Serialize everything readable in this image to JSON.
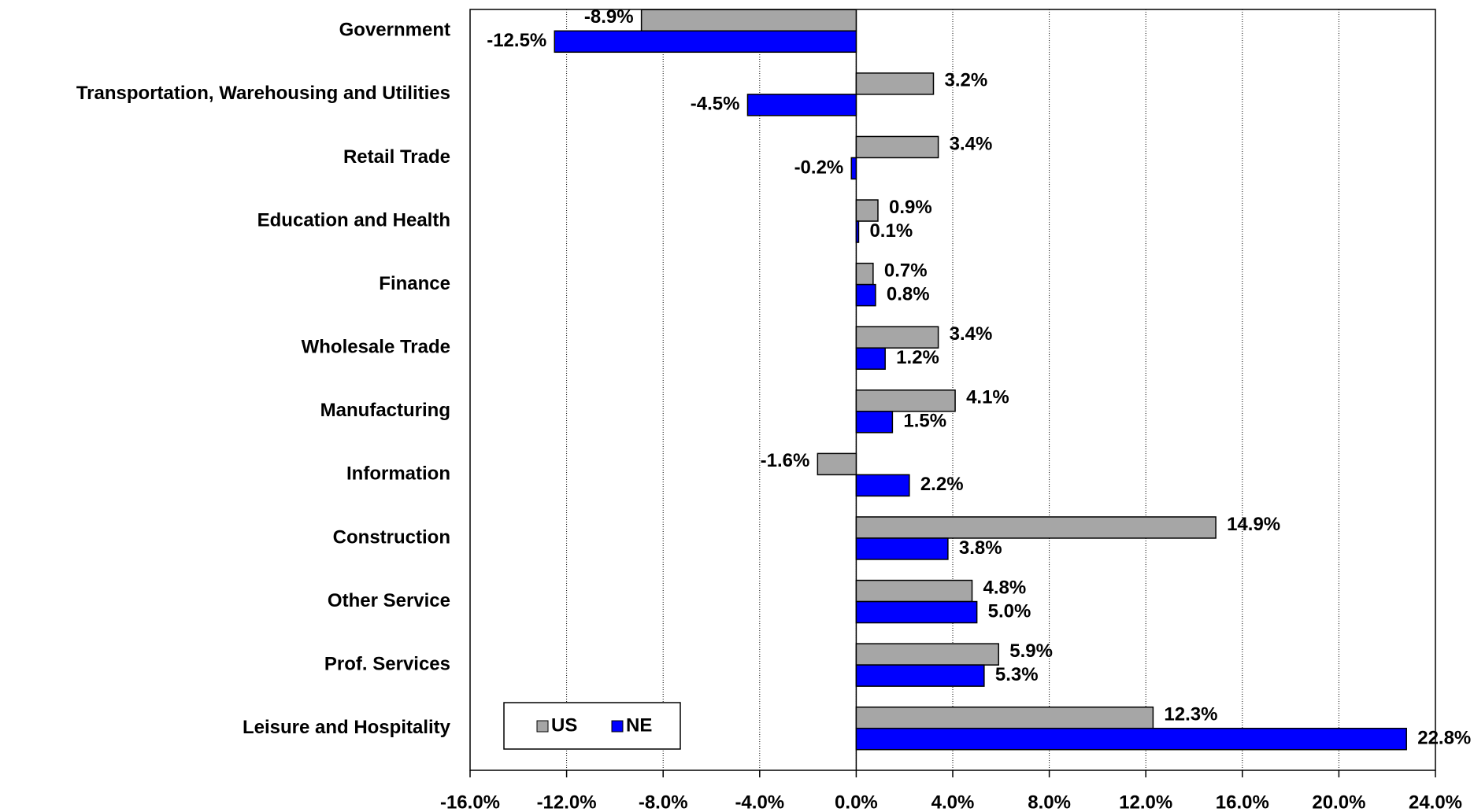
{
  "chart_data": {
    "type": "bar",
    "orientation": "horizontal",
    "categories": [
      "Government",
      "Transportation, Warehousing and Utilities",
      "Retail Trade",
      "Education and Health",
      "Finance",
      "Wholesale Trade",
      "Manufacturing",
      "Information",
      "Construction",
      "Other Service",
      "Prof. Services",
      "Leisure and Hospitality"
    ],
    "series": [
      {
        "name": "US",
        "color": "#a6a6a6",
        "values": [
          -8.9,
          3.2,
          3.4,
          0.9,
          0.7,
          3.4,
          4.1,
          -1.6,
          14.9,
          4.8,
          5.9,
          12.3
        ],
        "value_labels": [
          "-8.9%",
          "3.2%",
          "3.4%",
          "0.9%",
          "0.7%",
          "3.4%",
          "4.1%",
          "-1.6%",
          "14.9%",
          "4.8%",
          "5.9%",
          "12.3%"
        ]
      },
      {
        "name": "NE",
        "color": "#0000ff",
        "values": [
          -12.5,
          -4.5,
          -0.2,
          0.1,
          0.8,
          1.2,
          1.5,
          2.2,
          3.8,
          5.0,
          5.3,
          22.8
        ],
        "value_labels": [
          "-12.5%",
          "-4.5%",
          "-0.2%",
          "0.1%",
          "0.8%",
          "1.2%",
          "1.5%",
          "2.2%",
          "3.8%",
          "5.0%",
          "5.3%",
          "22.8%"
        ]
      }
    ],
    "xlim": [
      -16,
      24
    ],
    "xticks": [
      {
        "value": -16,
        "label": "-16.0%"
      },
      {
        "value": -12,
        "label": "-12.0%"
      },
      {
        "value": -8,
        "label": "-8.0%"
      },
      {
        "value": -4,
        "label": "-4.0%"
      },
      {
        "value": 0,
        "label": "0.0%"
      },
      {
        "value": 4,
        "label": "4.0%"
      },
      {
        "value": 8,
        "label": "8.0%"
      },
      {
        "value": 12,
        "label": "12.0%"
      },
      {
        "value": 16,
        "label": "16.0%"
      },
      {
        "value": 20,
        "label": "20.0%"
      },
      {
        "value": 24,
        "label": "24.0%"
      }
    ],
    "grid": true,
    "legend": "bottom-left"
  }
}
